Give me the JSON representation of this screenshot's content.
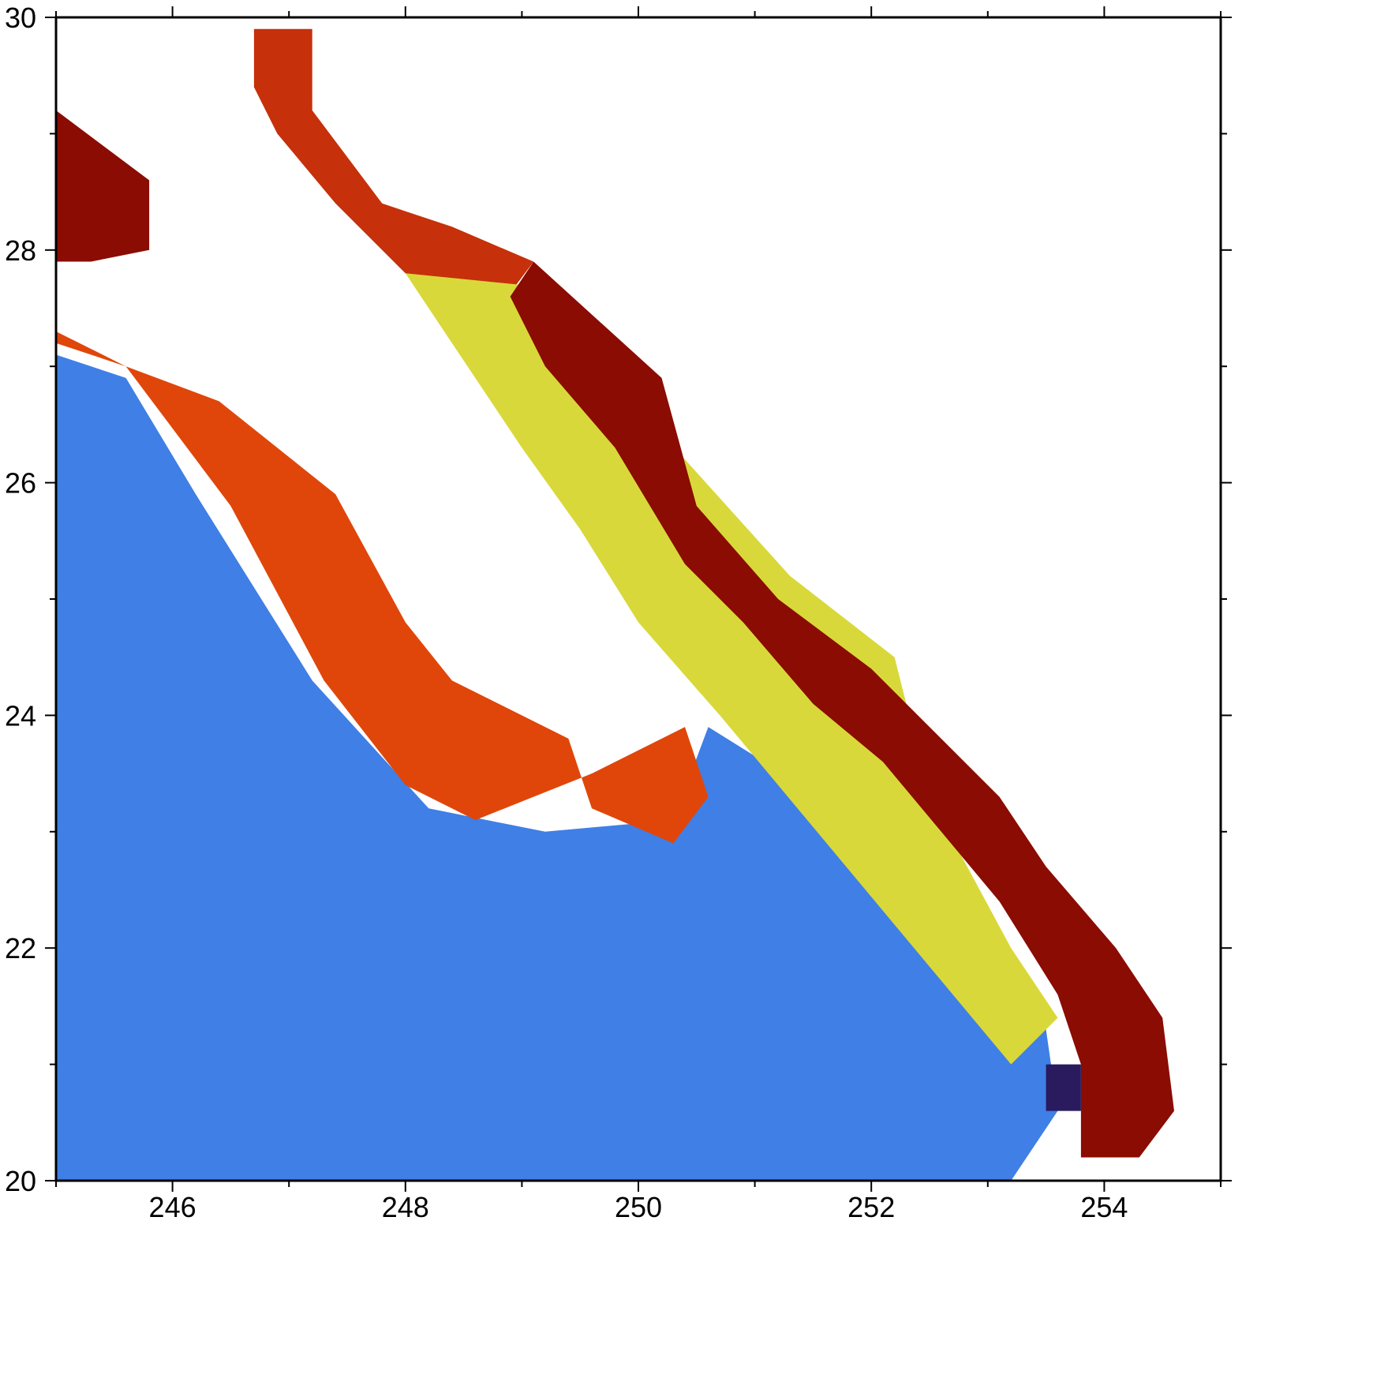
{
  "figure": {
    "x_ticks": [
      "246",
      "248",
      "250",
      "252",
      "254"
    ],
    "y_ticks": [
      "20",
      "22",
      "24",
      "26",
      "28",
      "30"
    ]
  },
  "chart_data": {
    "type": "heatmap",
    "title": "",
    "xlabel": "",
    "ylabel": "",
    "xlim": [
      245,
      255
    ],
    "ylim": [
      20,
      30
    ],
    "x_major_ticks": [
      246,
      248,
      250,
      252,
      254
    ],
    "y_major_ticks": [
      20,
      22,
      24,
      26,
      28,
      30
    ],
    "colormap_order_low_to_high": [
      "#2a1a5e",
      "#3f55c8",
      "#3b8df0",
      "#24c4e0",
      "#2fe6b0",
      "#7cf55a",
      "#c6e63a",
      "#f2c230",
      "#f78a1e",
      "#e0460a",
      "#b01e04",
      "#7d0a01"
    ],
    "colorbar_shown": false,
    "missing_data_color": "#ffffff",
    "features": [
      {
        "name": "ocean_open_water",
        "color_class": "blue-cyan",
        "polygon": [
          [
            245.0,
            20.0
          ],
          [
            253.2,
            20.0
          ],
          [
            253.6,
            20.6
          ],
          [
            253.5,
            21.3
          ],
          [
            253.0,
            22.0
          ],
          [
            252.4,
            22.6
          ],
          [
            251.4,
            23.4
          ],
          [
            250.6,
            23.9
          ],
          [
            250.3,
            23.1
          ],
          [
            249.2,
            23.0
          ],
          [
            248.2,
            23.2
          ],
          [
            247.2,
            24.3
          ],
          [
            246.2,
            25.9
          ],
          [
            245.6,
            26.9
          ],
          [
            245.0,
            27.1
          ]
        ]
      },
      {
        "name": "coastal_band_peninsula_west",
        "color_class": "orange-darkred",
        "polygon": [
          [
            245.0,
            27.2
          ],
          [
            245.6,
            27.0
          ],
          [
            246.4,
            26.7
          ],
          [
            247.4,
            25.9
          ],
          [
            248.0,
            24.8
          ],
          [
            248.4,
            24.3
          ],
          [
            249.4,
            23.8
          ],
          [
            249.6,
            23.2
          ],
          [
            250.3,
            22.9
          ],
          [
            250.6,
            23.3
          ],
          [
            250.4,
            23.9
          ],
          [
            249.6,
            23.5
          ],
          [
            248.6,
            23.1
          ],
          [
            248.0,
            23.4
          ],
          [
            247.3,
            24.3
          ],
          [
            246.5,
            25.8
          ],
          [
            245.6,
            27.0
          ],
          [
            245.0,
            27.3
          ]
        ]
      },
      {
        "name": "peninsula_interior_north",
        "color_class": "darkred",
        "polygon": [
          [
            245.0,
            29.2
          ],
          [
            245.4,
            28.9
          ],
          [
            245.8,
            28.6
          ],
          [
            245.8,
            28.0
          ],
          [
            245.3,
            27.9
          ],
          [
            245.0,
            27.9
          ]
        ]
      },
      {
        "name": "gulf_upper_warm_water",
        "color_class": "darkred-orange",
        "polygon": [
          [
            246.7,
            29.9
          ],
          [
            247.2,
            29.9
          ],
          [
            247.2,
            29.2
          ],
          [
            247.8,
            28.4
          ],
          [
            248.4,
            28.2
          ],
          [
            249.1,
            27.9
          ],
          [
            248.8,
            27.5
          ],
          [
            248.0,
            27.8
          ],
          [
            247.4,
            28.4
          ],
          [
            246.9,
            29.0
          ],
          [
            246.7,
            29.4
          ]
        ]
      },
      {
        "name": "gulf_central_yellow",
        "color_class": "yellow-green",
        "polygon": [
          [
            248.0,
            27.8
          ],
          [
            249.0,
            27.7
          ],
          [
            250.4,
            26.2
          ],
          [
            251.3,
            25.2
          ],
          [
            252.2,
            24.5
          ],
          [
            252.5,
            23.3
          ],
          [
            253.2,
            22.0
          ],
          [
            253.6,
            21.4
          ],
          [
            253.2,
            21.0
          ],
          [
            252.2,
            22.2
          ],
          [
            251.2,
            23.4
          ],
          [
            250.7,
            24.0
          ],
          [
            250.0,
            24.8
          ],
          [
            249.5,
            25.6
          ],
          [
            249.0,
            26.3
          ],
          [
            248.4,
            27.2
          ]
        ]
      },
      {
        "name": "mainland_coastal_darkred",
        "color_class": "darkred",
        "polygon": [
          [
            249.1,
            27.9
          ],
          [
            250.2,
            26.9
          ],
          [
            250.5,
            25.8
          ],
          [
            251.2,
            25.0
          ],
          [
            252.0,
            24.4
          ],
          [
            252.5,
            23.9
          ],
          [
            253.1,
            23.3
          ],
          [
            253.5,
            22.7
          ],
          [
            254.1,
            22.0
          ],
          [
            254.5,
            21.4
          ],
          [
            254.6,
            20.6
          ],
          [
            254.3,
            20.2
          ],
          [
            253.8,
            20.2
          ],
          [
            253.8,
            21.0
          ],
          [
            253.6,
            21.6
          ],
          [
            253.1,
            22.4
          ],
          [
            252.6,
            23.0
          ],
          [
            252.1,
            23.6
          ],
          [
            251.5,
            24.1
          ],
          [
            250.9,
            24.8
          ],
          [
            250.4,
            25.3
          ],
          [
            249.8,
            26.3
          ],
          [
            249.2,
            27.0
          ],
          [
            248.9,
            27.6
          ]
        ]
      },
      {
        "name": "cold_upwelling_spot",
        "color_class": "deep-purple",
        "polygon": [
          [
            253.5,
            20.6
          ],
          [
            253.8,
            20.6
          ],
          [
            253.8,
            21.0
          ],
          [
            253.5,
            21.0
          ]
        ]
      }
    ]
  }
}
